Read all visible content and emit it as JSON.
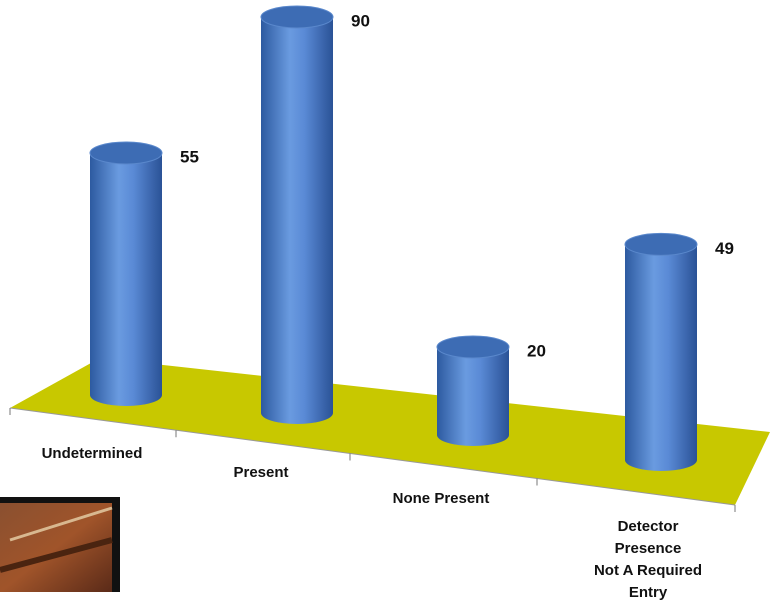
{
  "chart_data": {
    "type": "bar3d",
    "categories": [
      "Undetermined",
      "Present",
      "None Present",
      "Detector Presence\nNot A Required\nEntry"
    ],
    "values": [
      55,
      90,
      20,
      49
    ],
    "color": "#4a7cc4",
    "floor_color": "#c8c800"
  }
}
